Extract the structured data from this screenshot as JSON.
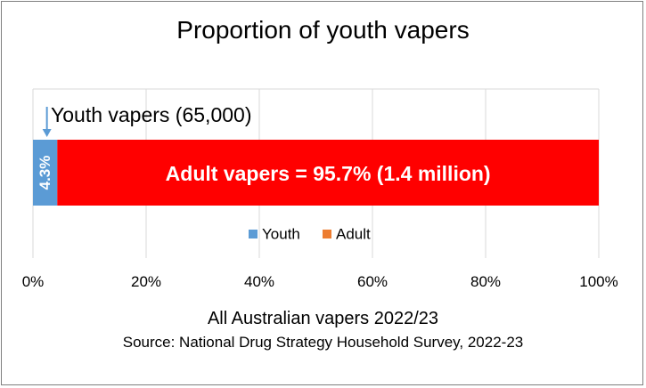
{
  "chart_data": {
    "type": "bar",
    "orientation": "horizontal",
    "stacked": true,
    "title": "Proportion of youth vapers",
    "categories": [
      ""
    ],
    "series": [
      {
        "name": "Youth",
        "values": [
          4.3
        ],
        "color": "#5b9bd5",
        "data_label": "4.3%"
      },
      {
        "name": "Adult",
        "values": [
          95.7
        ],
        "color": "#ff0000",
        "data_label": "Adult vapers = 95.7% (1.4 million)"
      }
    ],
    "legend_colors": [
      "#5b9bd5",
      "#ed7d31"
    ],
    "xlim": [
      0,
      100
    ],
    "xticks": [
      "0%",
      "20%",
      "40%",
      "60%",
      "80%",
      "100%"
    ],
    "grid": true,
    "legend_position": "bottom-inside",
    "annotation": "Youth vapers (65,000)",
    "caption": "All Australian vapers 2022/23",
    "source": "Source: National Drug Strategy Household Survey, 2022-23"
  }
}
